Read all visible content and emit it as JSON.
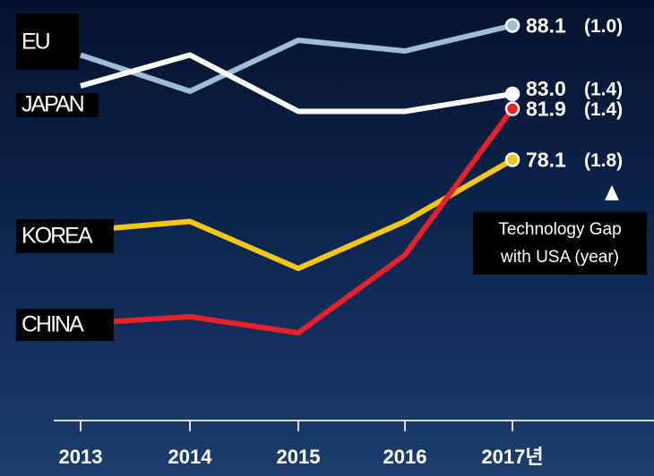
{
  "chart_data": {
    "type": "line",
    "categories": [
      "2013",
      "2014",
      "2015",
      "2016",
      "2017년"
    ],
    "ylim": [
      58,
      90
    ],
    "annotation": [
      "Technology Gap",
      "with USA (year)"
    ],
    "series": [
      {
        "name": "EU",
        "color": "#9dbfd6",
        "values": [
          85.9,
          83.2,
          87.0,
          86.2,
          88.1
        ],
        "value_labels": [
          null,
          null,
          null,
          null,
          "88.1"
        ],
        "gap_label": "(1.0)"
      },
      {
        "name": "JAPAN",
        "color": "#ffffff",
        "values": [
          83.6,
          85.9,
          81.7,
          81.7,
          83.0
        ],
        "value_labels": [
          null,
          null,
          null,
          null,
          "83.0"
        ],
        "gap_label": "(1.4)"
      },
      {
        "name": "KOREA",
        "color": "#f5c518",
        "values": [
          72.8,
          73.5,
          70.0,
          73.5,
          78.1
        ],
        "value_labels": [
          null,
          null,
          null,
          null,
          "78.1"
        ],
        "gap_label": "(1.8)"
      },
      {
        "name": "CHINA",
        "color": "#e8202a",
        "values": [
          65.9,
          66.4,
          65.2,
          71.0,
          81.9
        ],
        "value_labels": [
          null,
          null,
          null,
          null,
          "81.9"
        ],
        "gap_label": "(1.4)"
      }
    ]
  }
}
